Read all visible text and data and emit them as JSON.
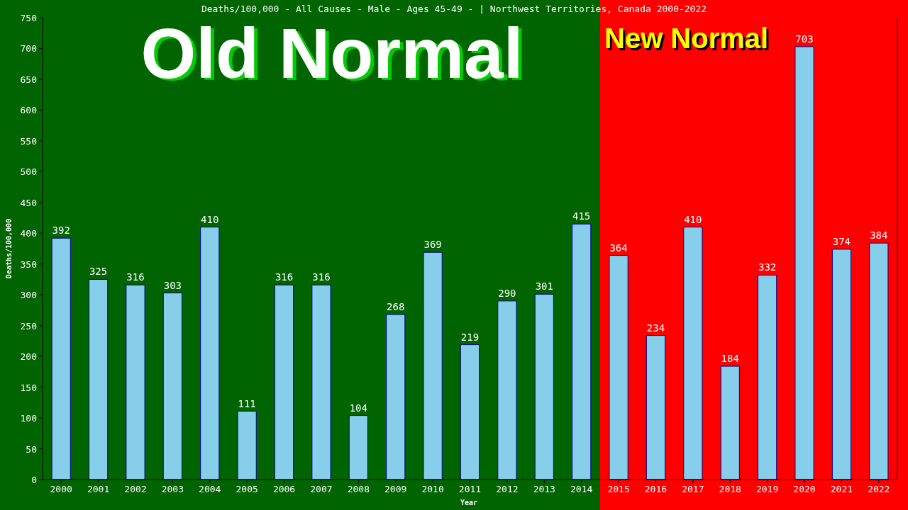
{
  "chart_data": {
    "type": "bar",
    "title": "Deaths/100,000 - All Causes - Male - Ages 45-49 -  | Northwest Territories, Canada 2000-2022",
    "xlabel": "Year",
    "ylabel": "Deaths/100,000",
    "categories": [
      "2000",
      "2001",
      "2002",
      "2003",
      "2004",
      "2005",
      "2006",
      "2007",
      "2008",
      "2009",
      "2010",
      "2011",
      "2012",
      "2013",
      "2014",
      "2015",
      "2016",
      "2017",
      "2018",
      "2019",
      "2020",
      "2021",
      "2022"
    ],
    "values": [
      392,
      325,
      316,
      303,
      410,
      111,
      316,
      316,
      104,
      268,
      369,
      219,
      290,
      301,
      415,
      364,
      234,
      410,
      184,
      332,
      703,
      374,
      384
    ],
    "color": "#87ceeb",
    "data_labels": true,
    "ylim": [
      0,
      750
    ],
    "yticks": [
      0,
      50,
      100,
      150,
      200,
      250,
      300,
      350,
      400,
      450,
      500,
      550,
      600,
      650,
      700,
      750
    ],
    "grid": false,
    "bands": [
      {
        "axis": "x",
        "from": "2000",
        "to": "2014",
        "label": "Old Normal",
        "color": "#006400"
      },
      {
        "axis": "x",
        "from": "2015",
        "to": "2022",
        "label": "New Normal",
        "color": "#ff0000"
      }
    ]
  }
}
